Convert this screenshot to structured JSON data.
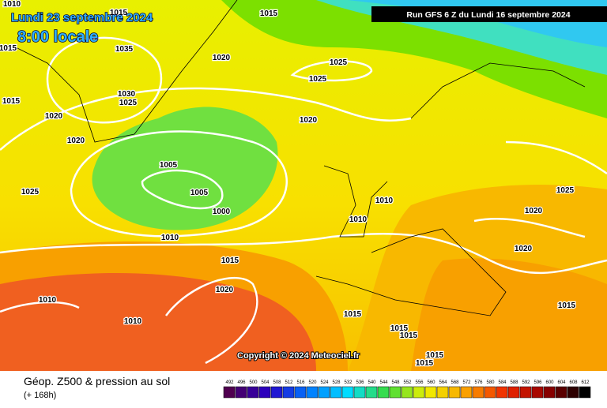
{
  "header": {
    "valid_date": "Lundi 23 septembre 2024",
    "local_time": "8:00 locale",
    "run": "Run GFS 6 Z du Lundi 16 septembre 2024"
  },
  "copyright": "Copyright © 2024 Meteociel.fr",
  "footer": {
    "title": "Géop. Z500 & pression au sol",
    "lead": "(+ 168h)"
  },
  "scale": [
    492,
    496,
    500,
    504,
    508,
    512,
    516,
    520,
    524,
    528,
    532,
    536,
    540,
    544,
    548,
    552,
    556,
    560,
    564,
    568,
    572,
    576,
    580,
    584,
    588,
    592,
    596,
    600,
    604,
    608,
    612
  ],
  "isobars": [
    "1010",
    "1015",
    "1015",
    "1015",
    "1035",
    "1020",
    "1025",
    "1025",
    "1030",
    "1025",
    "1015",
    "1020",
    "1020",
    "1020",
    "1005",
    "1005",
    "1010",
    "1000",
    "1025",
    "1025",
    "1020",
    "1010",
    "1010",
    "1020",
    "1015",
    "1020",
    "1010",
    "1015",
    "1010",
    "1015",
    "1015",
    "1015",
    "1015",
    "1015"
  ]
}
